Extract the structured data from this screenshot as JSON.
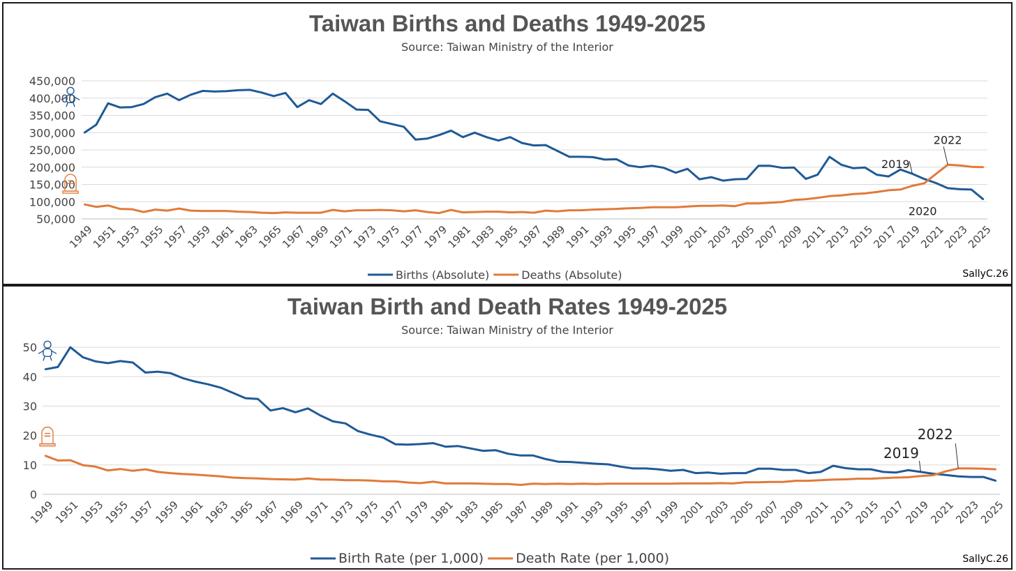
{
  "colors": {
    "births": "#1f5a96",
    "deaths": "#e07a3a",
    "grid": "#d9d9d9",
    "text": "#444444"
  },
  "chart_data": [
    {
      "type": "line",
      "title": "Taiwan Births and Deaths 1949-2025",
      "subtitle": "Source: Taiwan Ministry of the Interior",
      "credit": "SallyC.26",
      "icons": {
        "births": "baby-icon",
        "deaths": "tombstone-icon"
      },
      "ylim": [
        50000,
        450000
      ],
      "yticks": [
        50000,
        100000,
        150000,
        200000,
        250000,
        300000,
        350000,
        400000,
        450000
      ],
      "ytick_labels": [
        "50,000",
        "100,000",
        "150,000",
        "200,000",
        "250,000",
        "300,000",
        "350,000",
        "400,000",
        "450,000"
      ],
      "x": [
        1949,
        1950,
        1951,
        1952,
        1953,
        1954,
        1955,
        1956,
        1957,
        1958,
        1959,
        1960,
        1961,
        1962,
        1963,
        1964,
        1965,
        1966,
        1967,
        1968,
        1969,
        1970,
        1971,
        1972,
        1973,
        1974,
        1975,
        1976,
        1977,
        1978,
        1979,
        1980,
        1981,
        1982,
        1983,
        1984,
        1985,
        1986,
        1987,
        1988,
        1989,
        1990,
        1991,
        1992,
        1993,
        1994,
        1995,
        1996,
        1997,
        1998,
        1999,
        2000,
        2001,
        2002,
        2003,
        2004,
        2005,
        2006,
        2007,
        2008,
        2009,
        2010,
        2011,
        2012,
        2013,
        2014,
        2015,
        2016,
        2017,
        2018,
        2019,
        2020,
        2021,
        2022,
        2023,
        2024,
        2025
      ],
      "xtick_labels": [
        "1949",
        "1951",
        "1953",
        "1955",
        "1957",
        "1959",
        "1961",
        "1963",
        "1965",
        "1967",
        "1969",
        "1971",
        "1973",
        "1975",
        "1977",
        "1979",
        "1981",
        "1983",
        "1985",
        "1987",
        "1989",
        "1991",
        "1993",
        "1995",
        "1997",
        "1999",
        "2001",
        "2003",
        "2005",
        "2007",
        "2009",
        "2011",
        "2013",
        "2015",
        "2017",
        "2019",
        "2021",
        "2023",
        "2025"
      ],
      "series": [
        {
          "name": "Births (Absolute)",
          "key": "births",
          "values": [
            300000,
            323000,
            385000,
            373000,
            374000,
            383000,
            403000,
            413000,
            394000,
            410000,
            421000,
            419000,
            420000,
            423000,
            424000,
            416000,
            406000,
            415000,
            374000,
            394000,
            383000,
            413000,
            391000,
            367000,
            366000,
            333000,
            325000,
            317000,
            280000,
            283000,
            293000,
            306000,
            287000,
            300000,
            287000,
            277000,
            287000,
            270000,
            263000,
            264000,
            247000,
            230000,
            230000,
            229000,
            222000,
            223000,
            205000,
            200000,
            204000,
            198000,
            184000,
            195000,
            165000,
            171000,
            161000,
            165000,
            166000,
            204000,
            204000,
            198000,
            199000,
            166000,
            178000,
            230000,
            207000,
            197000,
            199000,
            178000,
            173000,
            193000,
            181000,
            166000,
            154000,
            139000,
            136000,
            135000,
            107000
          ]
        },
        {
          "name": "Deaths (Absolute)",
          "key": "deaths",
          "values": [
            92000,
            85000,
            89000,
            79000,
            78000,
            70000,
            77000,
            74000,
            80000,
            74000,
            73000,
            73000,
            73000,
            71000,
            70000,
            68000,
            67000,
            69000,
            68000,
            68000,
            68000,
            76000,
            72000,
            75000,
            75000,
            76000,
            75000,
            72000,
            75000,
            70000,
            67000,
            76000,
            69000,
            70000,
            71000,
            71000,
            69000,
            70000,
            68000,
            74000,
            72000,
            75000,
            75000,
            77000,
            78000,
            79000,
            81000,
            82000,
            84000,
            84000,
            84000,
            86000,
            88000,
            88000,
            89000,
            87000,
            95000,
            95000,
            97000,
            99000,
            105000,
            107000,
            111000,
            116000,
            118000,
            122000,
            124000,
            128000,
            133000,
            135000,
            146000,
            153000,
            180000,
            207000,
            205000,
            201000,
            200000
          ]
        }
      ],
      "annotations": [
        {
          "text": "2019",
          "x": 2019,
          "series": "births"
        },
        {
          "text": "2020",
          "x": 2020,
          "series": "births"
        },
        {
          "text": "2022",
          "x": 2022,
          "series": "deaths"
        }
      ],
      "legend": "bottom-center"
    },
    {
      "type": "line",
      "title": "Taiwan Birth and Death Rates 1949-2025",
      "subtitle": "Source: Taiwan Ministry of the Interior",
      "credit": "SallyC.26",
      "icons": {
        "births": "baby-icon",
        "deaths": "tombstone-icon"
      },
      "ylim": [
        0,
        55
      ],
      "yticks": [
        0,
        10,
        20,
        30,
        40,
        50
      ],
      "ytick_labels": [
        "0",
        "10",
        "20",
        "30",
        "40",
        "50"
      ],
      "x": [
        1949,
        1950,
        1951,
        1952,
        1953,
        1954,
        1955,
        1956,
        1957,
        1958,
        1959,
        1960,
        1961,
        1962,
        1963,
        1964,
        1965,
        1966,
        1967,
        1968,
        1969,
        1970,
        1971,
        1972,
        1973,
        1974,
        1975,
        1976,
        1977,
        1978,
        1979,
        1980,
        1981,
        1982,
        1983,
        1984,
        1985,
        1986,
        1987,
        1988,
        1989,
        1990,
        1991,
        1992,
        1993,
        1994,
        1995,
        1996,
        1997,
        1998,
        1999,
        2000,
        2001,
        2002,
        2003,
        2004,
        2005,
        2006,
        2007,
        2008,
        2009,
        2010,
        2011,
        2012,
        2013,
        2014,
        2015,
        2016,
        2017,
        2018,
        2019,
        2020,
        2021,
        2022,
        2023,
        2024,
        2025
      ],
      "xtick_labels": [
        "1949",
        "1951",
        "1953",
        "1955",
        "1957",
        "1959",
        "1961",
        "1963",
        "1965",
        "1967",
        "1969",
        "1971",
        "1973",
        "1975",
        "1977",
        "1979",
        "1981",
        "1983",
        "1985",
        "1987",
        "1989",
        "1991",
        "1993",
        "1995",
        "1997",
        "1999",
        "2001",
        "2003",
        "2005",
        "2007",
        "2009",
        "2011",
        "2013",
        "2015",
        "2017",
        "2019",
        "2021",
        "2023",
        "2025"
      ],
      "series": [
        {
          "name": "Birth Rate (per 1,000)",
          "key": "births",
          "values": [
            42.5,
            43.3,
            50.0,
            46.6,
            45.2,
            44.6,
            45.3,
            44.8,
            41.4,
            41.7,
            41.2,
            39.5,
            38.3,
            37.4,
            36.3,
            34.5,
            32.7,
            32.4,
            28.5,
            29.3,
            27.9,
            29.2,
            26.8,
            24.8,
            24.1,
            21.5,
            20.3,
            19.3,
            17.0,
            16.9,
            17.1,
            17.4,
            16.2,
            16.4,
            15.6,
            14.8,
            15.0,
            13.8,
            13.2,
            13.2,
            12.0,
            11.1,
            11.0,
            10.7,
            10.4,
            10.2,
            9.4,
            8.8,
            8.8,
            8.5,
            8.0,
            8.3,
            7.2,
            7.4,
            7.0,
            7.2,
            7.2,
            8.7,
            8.7,
            8.3,
            8.3,
            7.2,
            7.6,
            9.7,
            8.9,
            8.5,
            8.5,
            7.6,
            7.4,
            8.2,
            7.6,
            7.0,
            6.6,
            6.1,
            5.9,
            5.9,
            4.6
          ]
        },
        {
          "name": "Death Rate (per 1,000)",
          "key": "deaths",
          "values": [
            13.1,
            11.5,
            11.6,
            9.9,
            9.4,
            8.1,
            8.6,
            8.0,
            8.5,
            7.6,
            7.2,
            6.9,
            6.7,
            6.4,
            6.1,
            5.7,
            5.5,
            5.4,
            5.2,
            5.1,
            5.0,
            5.4,
            5.0,
            5.0,
            4.8,
            4.8,
            4.7,
            4.4,
            4.4,
            4.0,
            3.8,
            4.3,
            3.7,
            3.7,
            3.7,
            3.6,
            3.5,
            3.5,
            3.2,
            3.6,
            3.5,
            3.6,
            3.5,
            3.6,
            3.5,
            3.6,
            3.6,
            3.6,
            3.6,
            3.6,
            3.6,
            3.7,
            3.7,
            3.7,
            3.8,
            3.7,
            4.1,
            4.1,
            4.2,
            4.2,
            4.6,
            4.6,
            4.8,
            5.0,
            5.1,
            5.3,
            5.3,
            5.5,
            5.7,
            5.8,
            6.2,
            6.5,
            7.8,
            8.8,
            8.8,
            8.7,
            8.5
          ]
        }
      ],
      "annotations": [
        {
          "text": "2019",
          "x": 2019,
          "series": "births"
        },
        {
          "text": "2022",
          "x": 2022,
          "series": "deaths"
        }
      ],
      "legend": "bottom-center"
    }
  ]
}
